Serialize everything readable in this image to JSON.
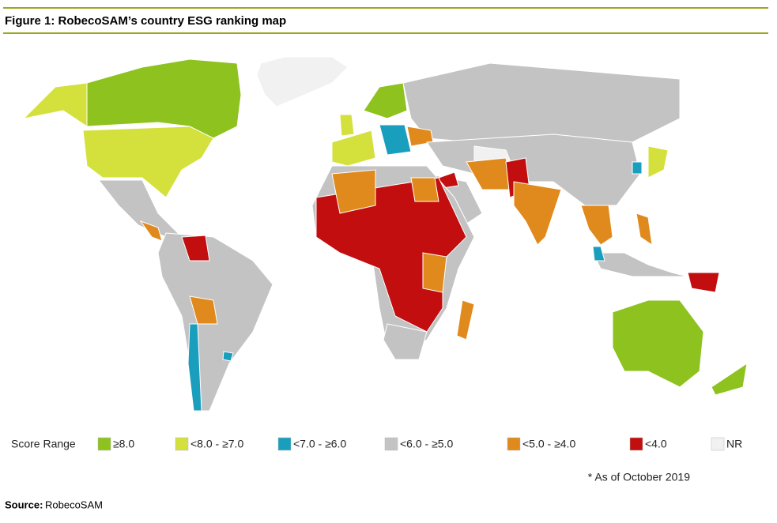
{
  "header": {
    "title": "Figure 1: RobecoSAM’s country ESG ranking map"
  },
  "legend": {
    "title": "Score Range",
    "items": [
      {
        "label": "≥8.0",
        "color": "#8dc21f"
      },
      {
        "label": "<8.0 - ≥7.0",
        "color": "#d4e03c"
      },
      {
        "label": "<7.0 - ≥6.0",
        "color": "#1a9ebd"
      },
      {
        "label": "<6.0 - ≥5.0",
        "color": "#c3c3c3"
      },
      {
        "label": "<5.0 - ≥4.0",
        "color": "#e0891c"
      },
      {
        "label": "<4.0",
        "color": "#c20e0e"
      },
      {
        "label": "NR",
        "color": "#f1f1f1"
      }
    ]
  },
  "note": "* As of October 2019",
  "source": {
    "label": "Source:",
    "text": "RobecoSAM"
  }
}
